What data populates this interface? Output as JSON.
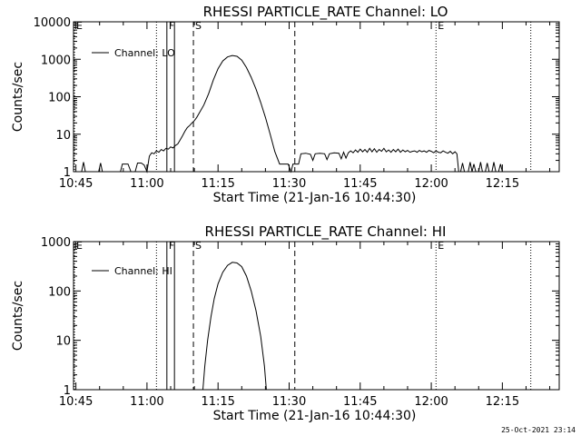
{
  "chart_data": [
    {
      "type": "line",
      "title": "RHESSI PARTICLE_RATE Channel: LO",
      "xlabel": "Start Time (21-Jan-16 10:44:30)",
      "ylabel": "Counts/sec",
      "y_scale": "log",
      "ylim": [
        1,
        10000
      ],
      "x_tick_labels": [
        "10:45",
        "11:00",
        "11:15",
        "11:30",
        "11:45",
        "12:00",
        "12:15"
      ],
      "x_tick_minutes": [
        45,
        60,
        75,
        90,
        105,
        120,
        135
      ],
      "xlim_minutes": [
        44.5,
        147
      ],
      "y_tick_labels": [
        "1",
        "10",
        "100",
        "1000",
        "10000"
      ],
      "y_tick_values": [
        1,
        10,
        100,
        1000,
        10000
      ],
      "legend": {
        "label": "Channel: LO",
        "placement": "top-left"
      },
      "markers": [
        {
          "label": "E",
          "minute": 44.7,
          "style": "dotted"
        },
        {
          "label": "",
          "minute": 62.0,
          "style": "dotted"
        },
        {
          "label": "F",
          "minute": 64.2,
          "style": "solid"
        },
        {
          "label": "",
          "minute": 65.8,
          "style": "solid"
        },
        {
          "label": "S",
          "minute": 69.8,
          "style": "dashed"
        },
        {
          "label": "",
          "minute": 91.2,
          "style": "dashed"
        },
        {
          "label": "E",
          "minute": 121.0,
          "style": "dotted"
        },
        {
          "label": "",
          "minute": 141.0,
          "style": "dotted"
        }
      ],
      "series": [
        {
          "points": [
            [
              46.2,
              1
            ],
            [
              46.6,
              1.8
            ],
            [
              47.0,
              1
            ],
            [
              49.8,
              1
            ],
            [
              50.2,
              1.7
            ],
            [
              50.6,
              1
            ],
            [
              54.4,
              1
            ],
            [
              54.8,
              1.6
            ],
            [
              55.4,
              1.6
            ],
            [
              56.0,
              1.6
            ],
            [
              56.6,
              1
            ],
            [
              57.5,
              1
            ],
            [
              58.0,
              1.7
            ],
            [
              58.8,
              1.7
            ],
            [
              59.4,
              1.5
            ],
            [
              60.0,
              1
            ],
            [
              60.5,
              2.6
            ],
            [
              61.0,
              3.2
            ],
            [
              61.5,
              3.0
            ],
            [
              62.0,
              3.6
            ],
            [
              62.5,
              3.3
            ],
            [
              63.0,
              3.9
            ],
            [
              63.5,
              3.6
            ],
            [
              64.0,
              4.2
            ],
            [
              64.5,
              4.0
            ],
            [
              65.0,
              4.6
            ],
            [
              65.5,
              4.3
            ],
            [
              66.0,
              5.0
            ],
            [
              66.5,
              5.5
            ],
            [
              67.0,
              7
            ],
            [
              67.5,
              9
            ],
            [
              68.0,
              12
            ],
            [
              68.5,
              15
            ],
            [
              69.0,
              17
            ],
            [
              69.5,
              20
            ],
            [
              70.0,
              23
            ],
            [
              70.5,
              28
            ],
            [
              71.0,
              36
            ],
            [
              72.0,
              60
            ],
            [
              73.0,
              120
            ],
            [
              74.0,
              280
            ],
            [
              75.0,
              560
            ],
            [
              76.0,
              900
            ],
            [
              77.0,
              1150
            ],
            [
              78.0,
              1260
            ],
            [
              79.0,
              1200
            ],
            [
              80.0,
              950
            ],
            [
              81.0,
              600
            ],
            [
              82.0,
              330
            ],
            [
              83.0,
              160
            ],
            [
              84.0,
              70
            ],
            [
              85.0,
              28
            ],
            [
              86.0,
              10
            ],
            [
              87.0,
              3.4
            ],
            [
              88.0,
              1.6
            ],
            [
              88.6,
              1.6
            ],
            [
              89.2,
              1.6
            ],
            [
              89.8,
              1.6
            ],
            [
              90.4,
              1
            ],
            [
              90.8,
              1.6
            ],
            [
              91.4,
              1.6
            ],
            [
              92.0,
              1.6
            ],
            [
              92.5,
              3.0
            ],
            [
              93.5,
              3.1
            ],
            [
              94.5,
              2.9
            ],
            [
              95.0,
              2.0
            ],
            [
              95.5,
              3.0
            ],
            [
              96.5,
              3.1
            ],
            [
              97.5,
              3.0
            ],
            [
              98.0,
              2.1
            ],
            [
              98.5,
              3.0
            ],
            [
              99.5,
              3.2
            ],
            [
              100.5,
              3.1
            ],
            [
              101.0,
              2.2
            ],
            [
              101.5,
              3.3
            ],
            [
              102.0,
              2.3
            ],
            [
              102.5,
              3.2
            ],
            [
              103.0,
              3.6
            ],
            [
              103.5,
              3.2
            ],
            [
              104.0,
              3.8
            ],
            [
              104.5,
              3.3
            ],
            [
              105.0,
              4.0
            ],
            [
              105.5,
              3.4
            ],
            [
              106.0,
              3.9
            ],
            [
              106.5,
              3.3
            ],
            [
              107.0,
              4.2
            ],
            [
              107.5,
              3.4
            ],
            [
              108.0,
              4.1
            ],
            [
              108.5,
              3.3
            ],
            [
              109.0,
              3.9
            ],
            [
              109.5,
              3.5
            ],
            [
              110.0,
              4.2
            ],
            [
              110.5,
              3.4
            ],
            [
              111.0,
              3.8
            ],
            [
              111.5,
              3.3
            ],
            [
              112.0,
              3.9
            ],
            [
              112.5,
              3.4
            ],
            [
              113.0,
              4.0
            ],
            [
              113.5,
              3.3
            ],
            [
              114.0,
              3.8
            ],
            [
              114.5,
              3.4
            ],
            [
              115.0,
              3.7
            ],
            [
              115.5,
              3.3
            ],
            [
              116.0,
              3.5
            ],
            [
              116.5,
              3.6
            ],
            [
              117.0,
              3.3
            ],
            [
              117.5,
              3.7
            ],
            [
              118.0,
              3.4
            ],
            [
              118.5,
              3.6
            ],
            [
              119.0,
              3.3
            ],
            [
              119.5,
              3.7
            ],
            [
              120.0,
              3.5
            ],
            [
              120.5,
              3.2
            ],
            [
              121.0,
              3.6
            ],
            [
              121.5,
              3.3
            ],
            [
              122.0,
              3.2
            ],
            [
              122.5,
              3.6
            ],
            [
              123.0,
              3.3
            ],
            [
              123.5,
              3.1
            ],
            [
              124.0,
              3.5
            ],
            [
              124.5,
              3.0
            ],
            [
              125.0,
              3.4
            ],
            [
              125.4,
              3.0
            ],
            [
              125.8,
              1
            ],
            [
              126.2,
              1
            ],
            [
              126.6,
              1.7
            ],
            [
              127.0,
              1
            ],
            [
              127.8,
              1
            ],
            [
              128.2,
              1.8
            ],
            [
              128.6,
              1
            ],
            [
              129.0,
              1.6
            ],
            [
              129.4,
              1
            ],
            [
              130.0,
              1
            ],
            [
              130.4,
              1.8
            ],
            [
              130.8,
              1
            ],
            [
              131.4,
              1
            ],
            [
              131.8,
              1.7
            ],
            [
              132.2,
              1
            ],
            [
              132.8,
              1
            ],
            [
              133.2,
              1.8
            ],
            [
              133.6,
              1
            ],
            [
              134.2,
              1
            ],
            [
              134.6,
              1.6
            ],
            [
              135.0,
              1
            ]
          ]
        }
      ]
    },
    {
      "type": "line",
      "title": "RHESSI PARTICLE_RATE Channel: HI",
      "xlabel": "Start Time (21-Jan-16 10:44:30)",
      "ylabel": "Counts/sec",
      "y_scale": "log",
      "ylim": [
        1,
        1000
      ],
      "x_tick_labels": [
        "10:45",
        "11:00",
        "11:15",
        "11:30",
        "11:45",
        "12:00",
        "12:15"
      ],
      "x_tick_minutes": [
        45,
        60,
        75,
        90,
        105,
        120,
        135
      ],
      "xlim_minutes": [
        44.5,
        147
      ],
      "y_tick_labels": [
        "1",
        "10",
        "100",
        "1000"
      ],
      "y_tick_values": [
        1,
        10,
        100,
        1000
      ],
      "legend": {
        "label": "Channel: HI",
        "placement": "top-left"
      },
      "markers": [
        {
          "label": "E",
          "minute": 44.7,
          "style": "dotted"
        },
        {
          "label": "",
          "minute": 62.0,
          "style": "dotted"
        },
        {
          "label": "F",
          "minute": 64.2,
          "style": "solid"
        },
        {
          "label": "",
          "minute": 65.8,
          "style": "solid"
        },
        {
          "label": "S",
          "minute": 69.8,
          "style": "dashed"
        },
        {
          "label": "",
          "minute": 91.2,
          "style": "dashed"
        },
        {
          "label": "E",
          "minute": 121.0,
          "style": "dotted"
        },
        {
          "label": "",
          "minute": 141.0,
          "style": "dotted"
        }
      ],
      "series": [
        {
          "points": [
            [
              71.8,
              1
            ],
            [
              72.2,
              3
            ],
            [
              72.8,
              10
            ],
            [
              73.5,
              30
            ],
            [
              74.2,
              70
            ],
            [
              75.0,
              140
            ],
            [
              76.0,
              240
            ],
            [
              77.0,
              330
            ],
            [
              78.0,
              380
            ],
            [
              79.0,
              370
            ],
            [
              80.0,
              310
            ],
            [
              81.0,
              200
            ],
            [
              82.0,
              100
            ],
            [
              83.0,
              40
            ],
            [
              84.0,
              12
            ],
            [
              84.8,
              3
            ],
            [
              85.2,
              1
            ]
          ]
        }
      ]
    }
  ],
  "footer": {
    "timestamp": "25-Oct-2021 23:14"
  }
}
